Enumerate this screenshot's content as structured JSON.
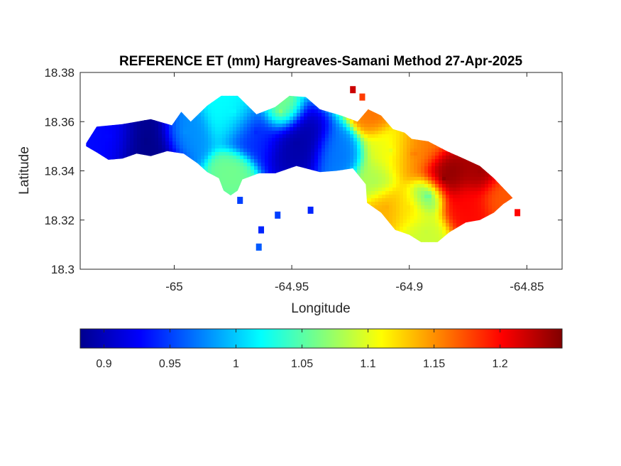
{
  "chart_data": {
    "type": "heatmap",
    "title": "REFERENCE ET (mm) Hargreaves-Samani Method  27-Apr-2025",
    "xlabel": "Longitude",
    "ylabel": "Latitude",
    "xlim": [
      -65.04,
      -64.835
    ],
    "ylim": [
      18.3,
      18.38
    ],
    "x_ticks": [
      {
        "value": -65.0,
        "label": "-65"
      },
      {
        "value": -64.95,
        "label": "-64.95"
      },
      {
        "value": -64.9,
        "label": "-64.9"
      },
      {
        "value": -64.85,
        "label": "-64.85"
      }
    ],
    "y_ticks": [
      {
        "value": 18.3,
        "label": "18.3"
      },
      {
        "value": 18.32,
        "label": "18.32"
      },
      {
        "value": 18.34,
        "label": "18.34"
      },
      {
        "value": 18.36,
        "label": "18.36"
      },
      {
        "value": 18.38,
        "label": "18.38"
      }
    ],
    "grid": false,
    "colormap": "jet",
    "colorbar": {
      "orientation": "horizontal",
      "placement": "bottom",
      "range": [
        0.882,
        1.247
      ],
      "ticks": [
        {
          "value": 0.9,
          "label": "0.9"
        },
        {
          "value": 0.95,
          "label": "0.95"
        },
        {
          "value": 1.0,
          "label": "1"
        },
        {
          "value": 1.05,
          "label": "1.05"
        },
        {
          "value": 1.1,
          "label": "1.1"
        },
        {
          "value": 1.15,
          "label": "1.15"
        },
        {
          "value": 1.2,
          "label": "1.2"
        }
      ]
    },
    "island_outline": [
      [
        -65.0375,
        18.3512
      ],
      [
        -65.033,
        18.358
      ],
      [
        -65.022,
        18.359
      ],
      [
        -65.01,
        18.361
      ],
      [
        -65.001,
        18.3585
      ],
      [
        -64.997,
        18.364
      ],
      [
        -64.993,
        18.36
      ],
      [
        -64.986,
        18.3665
      ],
      [
        -64.98,
        18.3705
      ],
      [
        -64.973,
        18.3705
      ],
      [
        -64.965,
        18.363
      ],
      [
        -64.957,
        18.366
      ],
      [
        -64.951,
        18.3705
      ],
      [
        -64.944,
        18.37
      ],
      [
        -64.938,
        18.365
      ],
      [
        -64.929,
        18.3625
      ],
      [
        -64.922,
        18.36
      ],
      [
        -64.9175,
        18.365
      ],
      [
        -64.912,
        18.3625
      ],
      [
        -64.907,
        18.357
      ],
      [
        -64.902,
        18.3555
      ],
      [
        -64.899,
        18.353
      ],
      [
        -64.892,
        18.352
      ],
      [
        -64.884,
        18.348
      ],
      [
        -64.878,
        18.3455
      ],
      [
        -64.87,
        18.342
      ],
      [
        -64.864,
        18.337
      ],
      [
        -64.859,
        18.332
      ],
      [
        -64.856,
        18.329
      ],
      [
        -64.86,
        18.3265
      ],
      [
        -64.864,
        18.323
      ],
      [
        -64.87,
        18.32
      ],
      [
        -64.876,
        18.319
      ],
      [
        -64.883,
        18.315
      ],
      [
        -64.888,
        18.311
      ],
      [
        -64.895,
        18.311
      ],
      [
        -64.9,
        18.314
      ],
      [
        -64.906,
        18.316
      ],
      [
        -64.912,
        18.323
      ],
      [
        -64.918,
        18.327
      ],
      [
        -64.9185,
        18.3345
      ],
      [
        -64.924,
        18.341
      ],
      [
        -64.931,
        18.34
      ],
      [
        -64.938,
        18.3395
      ],
      [
        -64.948,
        18.342
      ],
      [
        -64.957,
        18.339
      ],
      [
        -64.964,
        18.339
      ],
      [
        -64.971,
        18.3365
      ],
      [
        -64.973,
        18.332
      ],
      [
        -64.976,
        18.33
      ],
      [
        -64.979,
        18.332
      ],
      [
        -64.981,
        18.337
      ],
      [
        -64.986,
        18.3395
      ],
      [
        -64.99,
        18.343
      ],
      [
        -64.996,
        18.347
      ],
      [
        -65.003,
        18.348
      ],
      [
        -65.01,
        18.346
      ],
      [
        -65.016,
        18.347
      ],
      [
        -65.022,
        18.345
      ],
      [
        -65.028,
        18.3445
      ],
      [
        -65.033,
        18.3475
      ],
      [
        -65.0375,
        18.35
      ]
    ],
    "islets": [
      {
        "lon": -64.956,
        "lat": 18.322,
        "value": 0.95
      },
      {
        "lon": -64.942,
        "lat": 18.324,
        "value": 0.94
      },
      {
        "lon": -64.963,
        "lat": 18.316,
        "value": 0.94
      },
      {
        "lon": -64.964,
        "lat": 18.309,
        "value": 0.96
      },
      {
        "lon": -64.972,
        "lat": 18.328,
        "value": 0.95
      },
      {
        "lon": -64.854,
        "lat": 18.323,
        "value": 1.2
      },
      {
        "lon": -64.924,
        "lat": 18.373,
        "value": 1.22
      },
      {
        "lon": -64.92,
        "lat": 18.37,
        "value": 1.18
      }
    ],
    "field_centers": [
      {
        "lon": -65.012,
        "lat": 18.352,
        "value": 0.885,
        "spread": 0.007
      },
      {
        "lon": -65.028,
        "lat": 18.354,
        "value": 0.93,
        "spread": 0.006
      },
      {
        "lon": -64.995,
        "lat": 18.356,
        "value": 0.98,
        "spread": 0.005
      },
      {
        "lon": -64.948,
        "lat": 18.351,
        "value": 0.895,
        "spread": 0.0065
      },
      {
        "lon": -64.965,
        "lat": 18.356,
        "value": 0.94,
        "spread": 0.006
      },
      {
        "lon": -64.975,
        "lat": 18.364,
        "value": 1.02,
        "spread": 0.006
      },
      {
        "lon": -64.955,
        "lat": 18.364,
        "value": 1.07,
        "spread": 0.004
      },
      {
        "lon": -64.975,
        "lat": 18.34,
        "value": 1.06,
        "spread": 0.004
      },
      {
        "lon": -64.93,
        "lat": 18.346,
        "value": 0.97,
        "spread": 0.005
      },
      {
        "lon": -64.915,
        "lat": 18.362,
        "value": 1.16,
        "spread": 0.004
      },
      {
        "lon": -64.908,
        "lat": 18.348,
        "value": 1.1,
        "spread": 0.006
      },
      {
        "lon": -64.898,
        "lat": 18.347,
        "value": 1.16,
        "spread": 0.006
      },
      {
        "lon": -64.885,
        "lat": 18.337,
        "value": 1.245,
        "spread": 0.005
      },
      {
        "lon": -64.87,
        "lat": 18.3395,
        "value": 1.235,
        "spread": 0.0045
      },
      {
        "lon": -64.876,
        "lat": 18.325,
        "value": 1.2,
        "spread": 0.0055
      },
      {
        "lon": -64.86,
        "lat": 18.33,
        "value": 1.17,
        "spread": 0.005
      },
      {
        "lon": -64.9,
        "lat": 18.325,
        "value": 1.12,
        "spread": 0.005
      },
      {
        "lon": -64.91,
        "lat": 18.325,
        "value": 1.14,
        "spread": 0.0045
      },
      {
        "lon": -64.892,
        "lat": 18.33,
        "value": 1.04,
        "spread": 0.004
      },
      {
        "lon": -64.915,
        "lat": 18.336,
        "value": 1.08,
        "spread": 0.0045
      },
      {
        "lon": -64.893,
        "lat": 18.315,
        "value": 1.09,
        "spread": 0.005
      }
    ]
  }
}
